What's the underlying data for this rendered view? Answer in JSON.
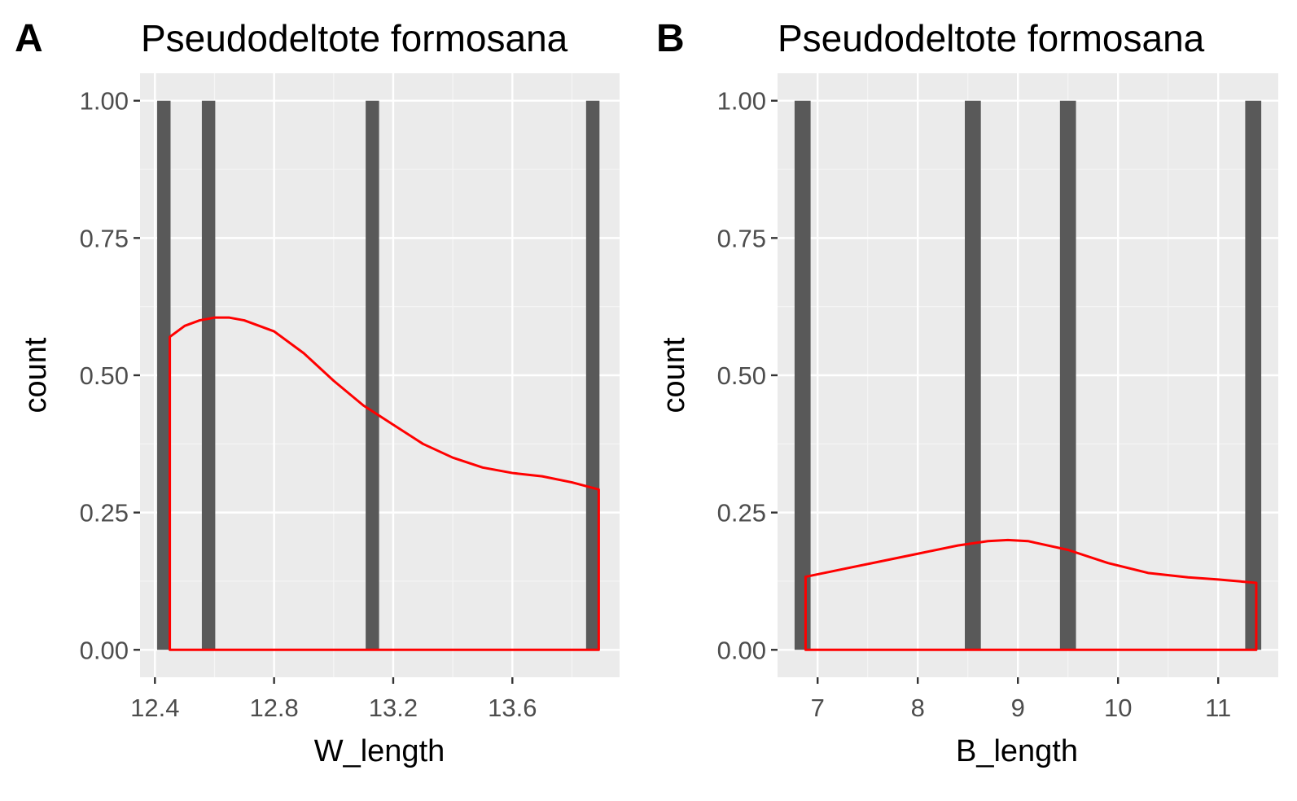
{
  "colors": {
    "panel_bg": "#ebebeb",
    "grid_major": "#ffffff",
    "grid_minor": "#f5f5f5",
    "bar_fill": "#595959",
    "density_line": "#ff0000",
    "tick_color": "#333333",
    "tick_label": "#4d4d4d"
  },
  "chart_data": [
    {
      "type": "bar",
      "panel_label": "A",
      "title": "Pseudodeltote formosana",
      "xlabel": "W_length",
      "ylabel": "count",
      "xlim": [
        12.35,
        13.96
      ],
      "ylim": [
        -0.05,
        1.05
      ],
      "grid": true,
      "x_ticks": [
        12.4,
        12.8,
        13.2,
        13.6
      ],
      "x_tick_labels": [
        "12.4",
        "12.8",
        "13.2",
        "13.6"
      ],
      "x_minor_ticks": [
        12.6,
        13.0,
        13.4,
        13.8
      ],
      "y_ticks": [
        0,
        0.25,
        0.5,
        0.75,
        1.0
      ],
      "y_tick_labels": [
        "0.00",
        "0.25",
        "0.50",
        "0.75",
        "1.00"
      ],
      "y_minor_ticks": [
        0.125,
        0.375,
        0.625,
        0.875
      ],
      "bar_width": 0.045,
      "bars": [
        {
          "x": 12.43,
          "count": 1
        },
        {
          "x": 12.58,
          "count": 1
        },
        {
          "x": 13.13,
          "count": 1
        },
        {
          "x": 13.87,
          "count": 1
        }
      ],
      "density_curve": {
        "x": [
          12.45,
          12.5,
          12.55,
          12.6,
          12.65,
          12.7,
          12.8,
          12.9,
          13.0,
          13.1,
          13.2,
          13.3,
          13.4,
          13.5,
          13.6,
          13.7,
          13.8,
          13.89
        ],
        "y": [
          0.57,
          0.59,
          0.6,
          0.605,
          0.605,
          0.6,
          0.58,
          0.54,
          0.49,
          0.445,
          0.41,
          0.375,
          0.35,
          0.332,
          0.322,
          0.316,
          0.305,
          0.292
        ]
      }
    },
    {
      "type": "bar",
      "panel_label": "B",
      "title": "Pseudodeltote formosana",
      "xlabel": "B_length",
      "ylabel": "count",
      "xlim": [
        6.6,
        11.6
      ],
      "ylim": [
        -0.05,
        1.05
      ],
      "grid": true,
      "x_ticks": [
        7,
        8,
        9,
        10,
        11
      ],
      "x_tick_labels": [
        "7",
        "8",
        "9",
        "10",
        "11"
      ],
      "x_minor_ticks": [
        7.5,
        8.5,
        9.5,
        10.5
      ],
      "y_ticks": [
        0,
        0.25,
        0.5,
        0.75,
        1.0
      ],
      "y_tick_labels": [
        "0.00",
        "0.25",
        "0.50",
        "0.75",
        "1.00"
      ],
      "y_minor_ticks": [
        0.125,
        0.375,
        0.625,
        0.875
      ],
      "bar_width": 0.16,
      "bars": [
        {
          "x": 6.85,
          "count": 1
        },
        {
          "x": 8.55,
          "count": 1
        },
        {
          "x": 9.5,
          "count": 1
        },
        {
          "x": 11.35,
          "count": 1
        }
      ],
      "density_curve": {
        "x": [
          6.88,
          7.2,
          7.6,
          8.0,
          8.4,
          8.7,
          8.9,
          9.1,
          9.5,
          9.9,
          10.3,
          10.7,
          11.0,
          11.38
        ],
        "y": [
          0.133,
          0.145,
          0.16,
          0.175,
          0.19,
          0.198,
          0.2,
          0.198,
          0.182,
          0.158,
          0.14,
          0.132,
          0.128,
          0.122
        ]
      }
    }
  ]
}
